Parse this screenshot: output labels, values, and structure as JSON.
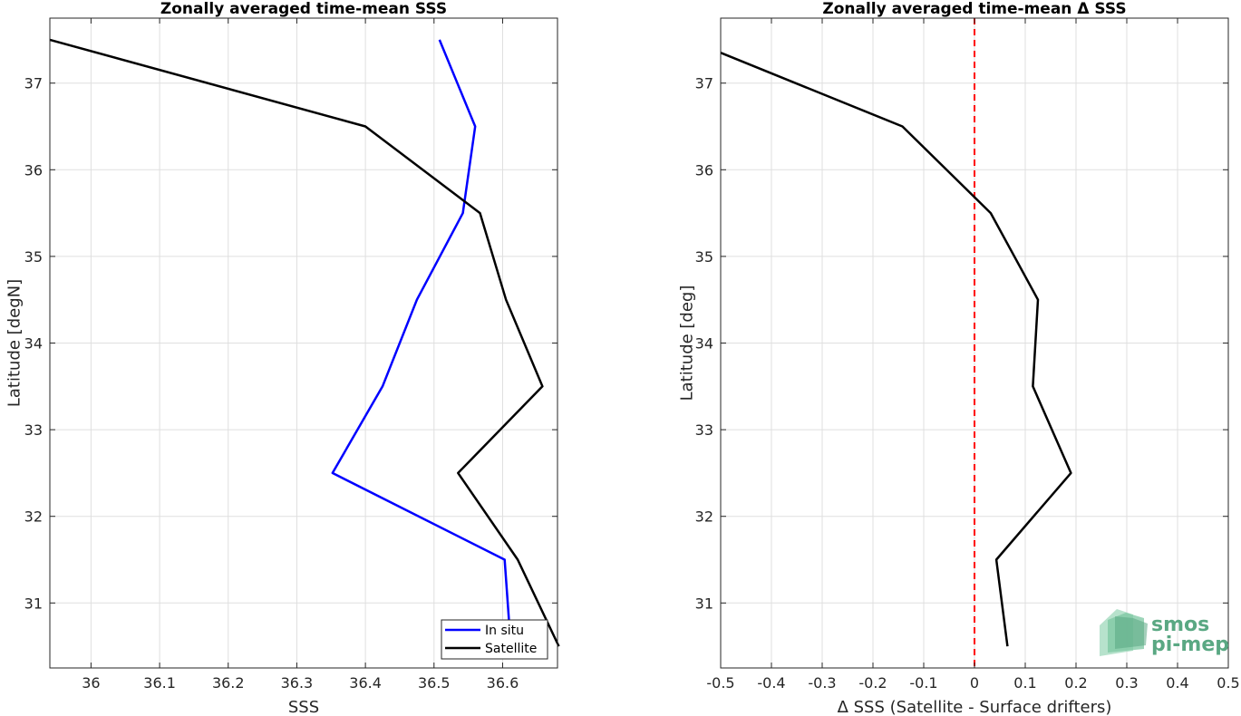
{
  "chart_data": [
    {
      "type": "line",
      "title": "Zonally averaged time-mean SSS",
      "xlabel": "SSS",
      "ylabel": "Latitude [degN]",
      "xlim": [
        35.94,
        36.68
      ],
      "ylim": [
        30.25,
        37.75
      ],
      "xticks": [
        36,
        36.1,
        36.2,
        36.3,
        36.4,
        36.5,
        36.6
      ],
      "xtick_labels": [
        "36",
        "36.1",
        "36.2",
        "36.3",
        "36.4",
        "36.5",
        "36.6"
      ],
      "yticks": [
        31,
        32,
        33,
        34,
        35,
        36,
        37
      ],
      "ytick_labels": [
        "31",
        "32",
        "33",
        "34",
        "35",
        "36",
        "37"
      ],
      "grid": true,
      "legend_position": "bottom-right",
      "series": [
        {
          "name": "In situ",
          "color": "#0000ff",
          "x": [
            36.612,
            36.603,
            36.352,
            36.425,
            36.475,
            36.542,
            36.56,
            36.508
          ],
          "y": [
            30.5,
            31.5,
            32.5,
            33.5,
            34.5,
            35.5,
            36.5,
            37.5
          ]
        },
        {
          "name": "Satellite",
          "color": "#000000",
          "x": [
            36.682,
            36.622,
            36.535,
            36.658,
            36.605,
            36.567,
            36.4,
            35.94
          ],
          "y": [
            30.5,
            31.5,
            32.5,
            33.5,
            34.5,
            35.5,
            36.5,
            37.5
          ]
        }
      ]
    },
    {
      "type": "line",
      "title": "Zonally averaged time-mean Δ SSS",
      "xlabel": "Δ SSS (Satellite - Surface drifters)",
      "ylabel": "Latitude [deg]",
      "xlim": [
        -0.5,
        0.5
      ],
      "ylim": [
        30.25,
        37.75
      ],
      "xticks": [
        -0.5,
        -0.4,
        -0.3,
        -0.2,
        -0.1,
        0,
        0.1,
        0.2,
        0.3,
        0.4,
        0.5
      ],
      "xtick_labels": [
        "-0.5",
        "-0.4",
        "-0.3",
        "-0.2",
        "-0.1",
        "0",
        "0.1",
        "0.2",
        "0.3",
        "0.4",
        "0.5"
      ],
      "yticks": [
        31,
        32,
        33,
        34,
        35,
        36,
        37
      ],
      "ytick_labels": [
        "31",
        "32",
        "33",
        "34",
        "35",
        "36",
        "37"
      ],
      "grid": true,
      "reference_line": {
        "x": 0,
        "color": "#ff0000",
        "style": "dashed"
      },
      "series": [
        {
          "color": "#000000",
          "x": [
            0.065,
            0.043,
            0.19,
            0.115,
            0.125,
            0.032,
            -0.142,
            -0.5
          ],
          "y": [
            30.5,
            31.5,
            32.5,
            33.5,
            34.5,
            35.5,
            36.5,
            37.35
          ]
        }
      ]
    }
  ],
  "logo": {
    "line1": "smos",
    "line2": "pi-mep",
    "color": "#5aa883"
  }
}
